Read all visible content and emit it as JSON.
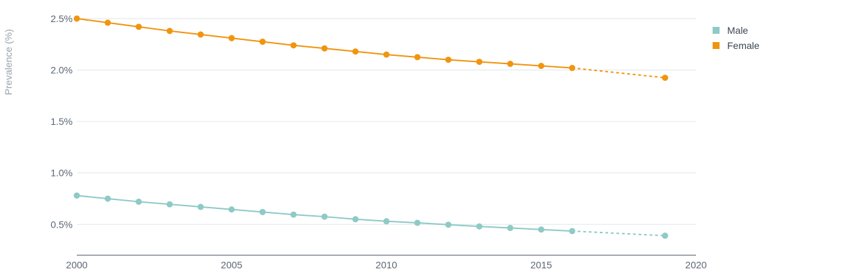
{
  "chart_data": {
    "type": "line",
    "ylabel": "Prevalence (%)",
    "xlim": [
      2000,
      2020
    ],
    "ylim": [
      0.2,
      2.6
    ],
    "xticks": [
      2000,
      2005,
      2010,
      2015,
      2020
    ],
    "xtick_labels": [
      "2000",
      "2005",
      "2010",
      "2015",
      "2020"
    ],
    "yticks": [
      0.5,
      1.0,
      1.5,
      2.0,
      2.5
    ],
    "ytick_labels": [
      "0.5%",
      "1.0%",
      "1.5%",
      "2.0%",
      "2.5%"
    ],
    "grid": true,
    "legend_position": "top-right",
    "series": [
      {
        "name": "Male",
        "color": "#8ecac6",
        "solid": {
          "x": [
            2000,
            2001,
            2002,
            2003,
            2004,
            2005,
            2006,
            2007,
            2008,
            2009,
            2010,
            2011,
            2012,
            2013,
            2014,
            2015,
            2016
          ],
          "y": [
            0.78,
            0.75,
            0.72,
            0.695,
            0.67,
            0.645,
            0.62,
            0.595,
            0.575,
            0.55,
            0.53,
            0.515,
            0.497,
            0.48,
            0.465,
            0.45,
            0.435
          ]
        },
        "projected": {
          "x": [
            2016,
            2019
          ],
          "y": [
            0.435,
            0.39
          ]
        }
      },
      {
        "name": "Female",
        "color": "#f0950f",
        "solid": {
          "x": [
            2000,
            2001,
            2002,
            2003,
            2004,
            2005,
            2006,
            2007,
            2008,
            2009,
            2010,
            2011,
            2012,
            2013,
            2014,
            2015,
            2016
          ],
          "y": [
            2.5,
            2.46,
            2.42,
            2.38,
            2.345,
            2.31,
            2.275,
            2.24,
            2.21,
            2.18,
            2.15,
            2.125,
            2.1,
            2.08,
            2.06,
            2.04,
            2.02
          ]
        },
        "projected": {
          "x": [
            2016,
            2019
          ],
          "y": [
            2.02,
            1.925
          ]
        }
      }
    ]
  }
}
